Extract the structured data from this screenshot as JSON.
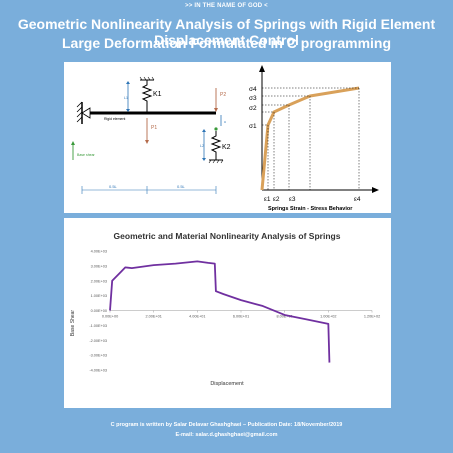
{
  "header": {
    "dedication": ">> IN THE NAME OF GOD <",
    "title_line1": "Geometric Nonlinearity Analysis of Springs with Rigid Element Displacement Control",
    "title_line2": "Large Deformation Formulated in C programming"
  },
  "diagram": {
    "spring1_label": "K1",
    "spring2_label": "K2",
    "element_label": "Rigid element",
    "load1_label": "P1",
    "load2_label": "P2",
    "disp1_label": "L1",
    "disp2_label": "L2",
    "ctrl_label": "u",
    "base_label": "Base shear",
    "dim_left": "0.5L",
    "dim_right": "0.5L"
  },
  "behavior_chart": {
    "title": "Springs Strain - Stress Behavior",
    "y_labels": [
      "σ4",
      "σ3",
      "σ2",
      "σ1"
    ],
    "x_labels": [
      "ε1",
      "ε2",
      "ε3",
      "ε4"
    ]
  },
  "chart_data": {
    "type": "line",
    "title": "Geometric and Material Nonlinearity Analysis of Springs",
    "xlabel": "Displacement",
    "ylabel": "Base Shear",
    "xlim": [
      0,
      120
    ],
    "ylim": [
      -4000,
      4000
    ],
    "x_ticks": [
      "0.00E+00",
      "2.00E+01",
      "4.00E+01",
      "6.00E+01",
      "8.00E+01",
      "1.00E+02",
      "1.20E+02"
    ],
    "y_ticks": [
      "4.00E+03",
      "3.00E+03",
      "2.00E+03",
      "1.00E+03",
      "0.00E+00",
      "-1.00E+03",
      "-2.00E+03",
      "-3.00E+03",
      "-4.00E+03"
    ],
    "series": [
      {
        "color": "#7030a0",
        "x": [
          0,
          1,
          5,
          7,
          10,
          20,
          30,
          40,
          45,
          48,
          48.5,
          52,
          60,
          70,
          80,
          90,
          100,
          100.5
        ],
        "y": [
          0,
          2000,
          2600,
          2900,
          2850,
          3050,
          3150,
          3300,
          3200,
          3150,
          1300,
          1100,
          700,
          300,
          -300,
          -600,
          -900,
          -3500
        ]
      }
    ]
  },
  "footer": {
    "credit": "C program is written by Salar Delavar Ghashghaei – Publication Date: 18/November/2019",
    "email": "E-mail: salar.d.ghashghaei@gmail.com"
  },
  "colors": {
    "background": "#7aaedb",
    "curve": "#7030a0",
    "behavior_curve": "#d9a15a",
    "spring": "#111111",
    "load_arrow": "#b46a4a",
    "disp_arrow": "#2e75b6",
    "base_arrow": "#3a9a3a"
  }
}
